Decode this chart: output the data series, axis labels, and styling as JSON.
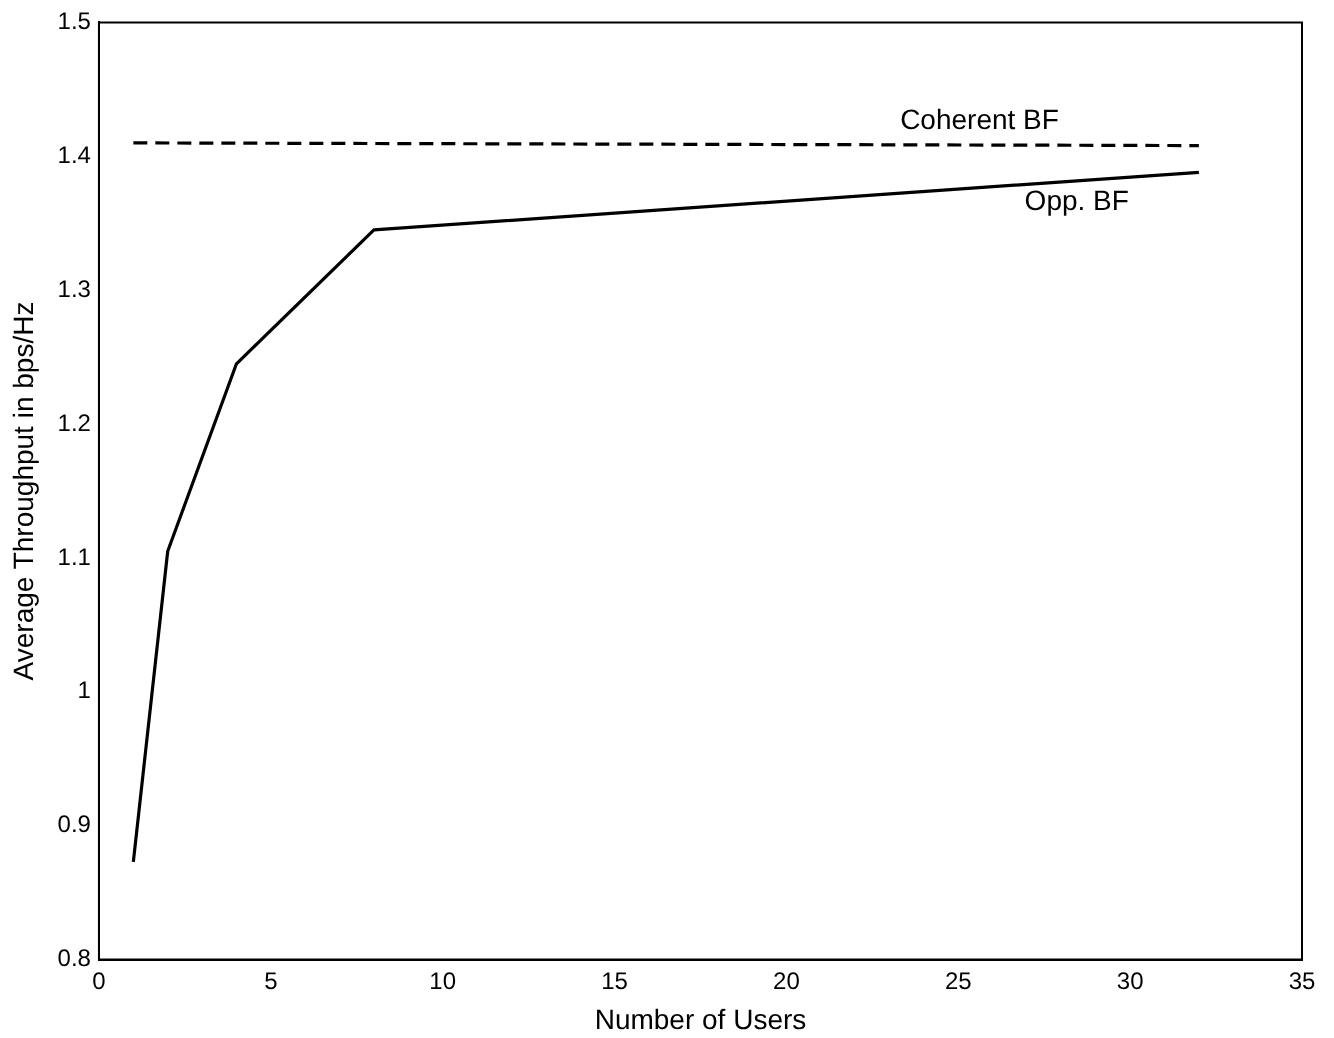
{
  "chart_data": {
    "type": "line",
    "xlabel": "Number of Users",
    "ylabel": "Average Throughput in bps/Hz",
    "series": [
      {
        "name": "Coherent BF",
        "color": "#000000",
        "line_style": "dashed",
        "x": [
          1,
          32
        ],
        "values": [
          1.41,
          1.408
        ]
      },
      {
        "name": "Opp. BF",
        "color": "#000000",
        "line_style": "solid",
        "x": [
          1,
          2,
          4,
          8,
          32
        ],
        "values": [
          0.873,
          1.105,
          1.245,
          1.345,
          1.388
        ]
      }
    ],
    "xlim": [
      0,
      35
    ],
    "xticks": [
      0,
      5,
      10,
      15,
      20,
      25,
      30,
      35
    ],
    "ylim": [
      0.8,
      1.5
    ],
    "yticks": [
      0.8,
      0.9,
      1,
      1.1,
      1.2,
      1.3,
      1.4,
      1.5
    ],
    "grid": false,
    "legend": false,
    "marker": "none"
  }
}
